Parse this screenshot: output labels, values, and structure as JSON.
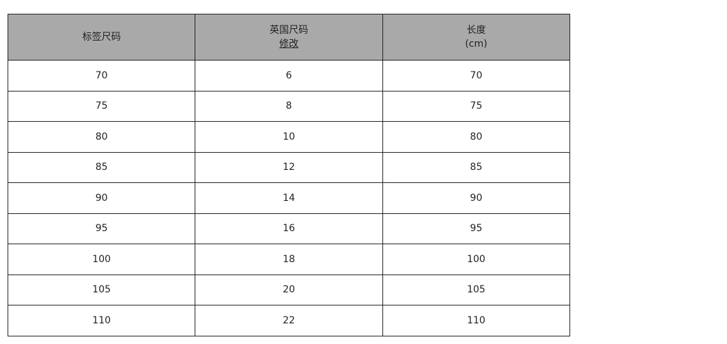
{
  "table": {
    "headers": [
      {
        "line1": "标签尺码",
        "line2": ""
      },
      {
        "line1": "英国尺码",
        "line2": "修改"
      },
      {
        "line1": "长度",
        "line2": "(cm)"
      }
    ],
    "rows": [
      [
        "70",
        "6",
        "70"
      ],
      [
        "75",
        "8",
        "75"
      ],
      [
        "80",
        "10",
        "80"
      ],
      [
        "85",
        "12",
        "85"
      ],
      [
        "90",
        "14",
        "90"
      ],
      [
        "95",
        "16",
        "95"
      ],
      [
        "100",
        "18",
        "100"
      ],
      [
        "105",
        "20",
        "105"
      ],
      [
        "110",
        "22",
        "110"
      ]
    ],
    "colors": {
      "header_bg": "#a9a9a9",
      "border": "#222222"
    }
  }
}
